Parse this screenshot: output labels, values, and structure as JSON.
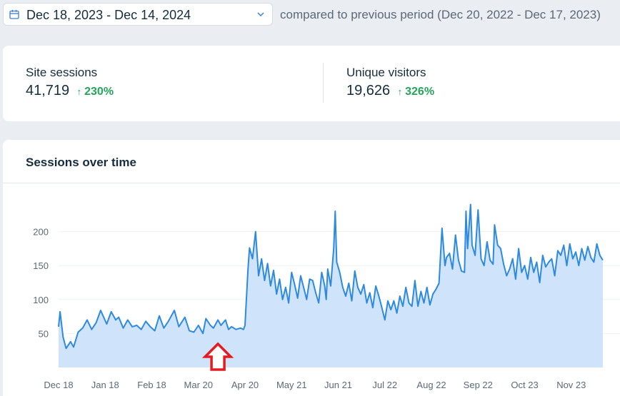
{
  "date_range": {
    "selected": "Dec 18, 2023 - Dec 14, 2024",
    "compare_label": "compared to previous period (Dec 20, 2022 - Dec 17, 2023)"
  },
  "metrics": [
    {
      "label": "Site sessions",
      "value": "41,719",
      "arrow": "↑",
      "change": "230%"
    },
    {
      "label": "Unique visitors",
      "value": "19,626",
      "arrow": "↑",
      "change": "326%"
    }
  ],
  "colors": {
    "line": "#2d8ae0",
    "area": "#cfe4fa",
    "positive": "#23a55a",
    "annotation": "#e21c21"
  },
  "chart_data": {
    "type": "area",
    "title": "Sessions over time",
    "xlabel": "",
    "ylabel": "",
    "ylim": [
      0,
      250
    ],
    "yticks": [
      50,
      100,
      150,
      200
    ],
    "grid": true,
    "x_range": [
      0,
      362
    ],
    "x_tick_positions": [
      0,
      31,
      62,
      93,
      124,
      155,
      186,
      217,
      248,
      279,
      310,
      341
    ],
    "categories": [
      "Dec 18",
      "Jan 18",
      "Feb 18",
      "Mar 20",
      "Apr 20",
      "May 21",
      "Jun 21",
      "Jul 22",
      "Aug 22",
      "Sep 22",
      "Oct 23",
      "Nov 23"
    ],
    "anchors": [
      [
        0,
        60
      ],
      [
        1,
        82
      ],
      [
        3,
        45
      ],
      [
        5,
        28
      ],
      [
        8,
        38
      ],
      [
        10,
        30
      ],
      [
        13,
        52
      ],
      [
        16,
        58
      ],
      [
        19,
        70
      ],
      [
        22,
        56
      ],
      [
        25,
        66
      ],
      [
        28,
        84
      ],
      [
        32,
        64
      ],
      [
        35,
        82
      ],
      [
        38,
        70
      ],
      [
        40,
        74
      ],
      [
        43,
        58
      ],
      [
        46,
        70
      ],
      [
        49,
        60
      ],
      [
        52,
        62
      ],
      [
        55,
        56
      ],
      [
        58,
        68
      ],
      [
        61,
        60
      ],
      [
        64,
        54
      ],
      [
        67,
        76
      ],
      [
        70,
        58
      ],
      [
        73,
        68
      ],
      [
        77,
        84
      ],
      [
        80,
        60
      ],
      [
        84,
        74
      ],
      [
        87,
        54
      ],
      [
        90,
        52
      ],
      [
        93,
        62
      ],
      [
        96,
        50
      ],
      [
        98,
        72
      ],
      [
        101,
        62
      ],
      [
        103,
        58
      ],
      [
        106,
        70
      ],
      [
        108,
        62
      ],
      [
        111,
        70
      ],
      [
        113,
        56
      ],
      [
        115,
        60
      ],
      [
        118,
        56
      ],
      [
        121,
        58
      ],
      [
        123,
        56
      ],
      [
        124,
        62
      ],
      [
        126,
        145
      ],
      [
        127,
        176
      ],
      [
        129,
        160
      ],
      [
        131,
        200
      ],
      [
        133,
        135
      ],
      [
        135,
        160
      ],
      [
        137,
        128
      ],
      [
        139,
        153
      ],
      [
        141,
        120
      ],
      [
        143,
        143
      ],
      [
        145,
        108
      ],
      [
        147,
        130
      ],
      [
        149,
        100
      ],
      [
        151,
        118
      ],
      [
        153,
        95
      ],
      [
        155,
        140
      ],
      [
        157,
        122
      ],
      [
        159,
        102
      ],
      [
        161,
        135
      ],
      [
        163,
        118
      ],
      [
        165,
        100
      ],
      [
        167,
        130
      ],
      [
        169,
        128
      ],
      [
        171,
        110
      ],
      [
        173,
        95
      ],
      [
        175,
        140
      ],
      [
        177,
        120
      ],
      [
        178,
        100
      ],
      [
        179,
        145
      ],
      [
        181,
        120
      ],
      [
        183,
        175
      ],
      [
        184,
        230
      ],
      [
        185,
        155
      ],
      [
        187,
        140
      ],
      [
        189,
        118
      ],
      [
        191,
        105
      ],
      [
        193,
        124
      ],
      [
        195,
        98
      ],
      [
        197,
        142
      ],
      [
        199,
        118
      ],
      [
        201,
        108
      ],
      [
        203,
        122
      ],
      [
        205,
        95
      ],
      [
        207,
        110
      ],
      [
        209,
        88
      ],
      [
        211,
        120
      ],
      [
        213,
        105
      ],
      [
        215,
        88
      ],
      [
        217,
        70
      ],
      [
        219,
        98
      ],
      [
        221,
        85
      ],
      [
        223,
        98
      ],
      [
        225,
        80
      ],
      [
        227,
        105
      ],
      [
        229,
        90
      ],
      [
        231,
        118
      ],
      [
        233,
        95
      ],
      [
        235,
        90
      ],
      [
        237,
        128
      ],
      [
        239,
        90
      ],
      [
        241,
        112
      ],
      [
        243,
        95
      ],
      [
        245,
        118
      ],
      [
        247,
        92
      ],
      [
        249,
        108
      ],
      [
        251,
        115
      ],
      [
        253,
        124
      ],
      [
        255,
        205
      ],
      [
        257,
        150
      ],
      [
        258,
        162
      ],
      [
        260,
        168
      ],
      [
        262,
        145
      ],
      [
        264,
        195
      ],
      [
        266,
        158
      ],
      [
        268,
        142
      ],
      [
        270,
        140
      ],
      [
        271,
        230
      ],
      [
        272,
        175
      ],
      [
        274,
        240
      ],
      [
        275,
        180
      ],
      [
        277,
        165
      ],
      [
        279,
        232
      ],
      [
        281,
        160
      ],
      [
        283,
        150
      ],
      [
        285,
        185
      ],
      [
        287,
        158
      ],
      [
        289,
        152
      ],
      [
        290,
        210
      ],
      [
        292,
        180
      ],
      [
        294,
        175
      ],
      [
        296,
        152
      ],
      [
        298,
        135
      ],
      [
        300,
        145
      ],
      [
        302,
        160
      ],
      [
        304,
        130
      ],
      [
        306,
        175
      ],
      [
        308,
        140
      ],
      [
        310,
        150
      ],
      [
        312,
        130
      ],
      [
        314,
        162
      ],
      [
        316,
        140
      ],
      [
        318,
        155
      ],
      [
        320,
        125
      ],
      [
        322,
        165
      ],
      [
        324,
        148
      ],
      [
        326,
        155
      ],
      [
        328,
        160
      ],
      [
        330,
        135
      ],
      [
        332,
        172
      ],
      [
        334,
        165
      ],
      [
        336,
        180
      ],
      [
        338,
        150
      ],
      [
        340,
        182
      ],
      [
        342,
        160
      ],
      [
        344,
        170
      ],
      [
        346,
        150
      ],
      [
        348,
        175
      ],
      [
        350,
        158
      ],
      [
        352,
        178
      ],
      [
        354,
        162
      ],
      [
        356,
        155
      ],
      [
        358,
        182
      ],
      [
        360,
        165
      ],
      [
        362,
        158
      ]
    ],
    "annotation": {
      "type": "arrow",
      "at_x": 106,
      "direction": "up"
    }
  }
}
